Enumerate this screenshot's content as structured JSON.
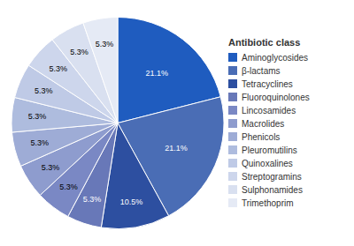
{
  "chart_data": {
    "type": "pie",
    "legend_title": "Antibiotic class",
    "categories": [
      "Aminoglycosides",
      "β-lactams",
      "Tetracyclines",
      "Fluoroquinolones",
      "Lincosamides",
      "Macrolides",
      "Phenicols",
      "Pleuromutilins",
      "Quinoxalines",
      "Streptogramins",
      "Sulphonamides",
      "Trimethoprim"
    ],
    "values": [
      21.1,
      21.1,
      10.5,
      5.3,
      5.3,
      5.3,
      5.3,
      5.3,
      5.3,
      5.3,
      5.3,
      5.3
    ],
    "value_labels": [
      "21.1%",
      "21.1%",
      "10.5%",
      "5.3%",
      "5.3%",
      "5.3%",
      "5.3%",
      "5.3%",
      "5.3%",
      "5.3%",
      "5.3%",
      "5.3%"
    ],
    "colors": [
      "#1f5cbf",
      "#4a6db5",
      "#2d4fa0",
      "#6878b8",
      "#7a88c4",
      "#8e9cce",
      "#9eacd6",
      "#aebcde",
      "#bfcae6",
      "#cdd6ec",
      "#d9e0f0",
      "#e5eaf5"
    ],
    "data_labels": true,
    "legend": "right"
  }
}
